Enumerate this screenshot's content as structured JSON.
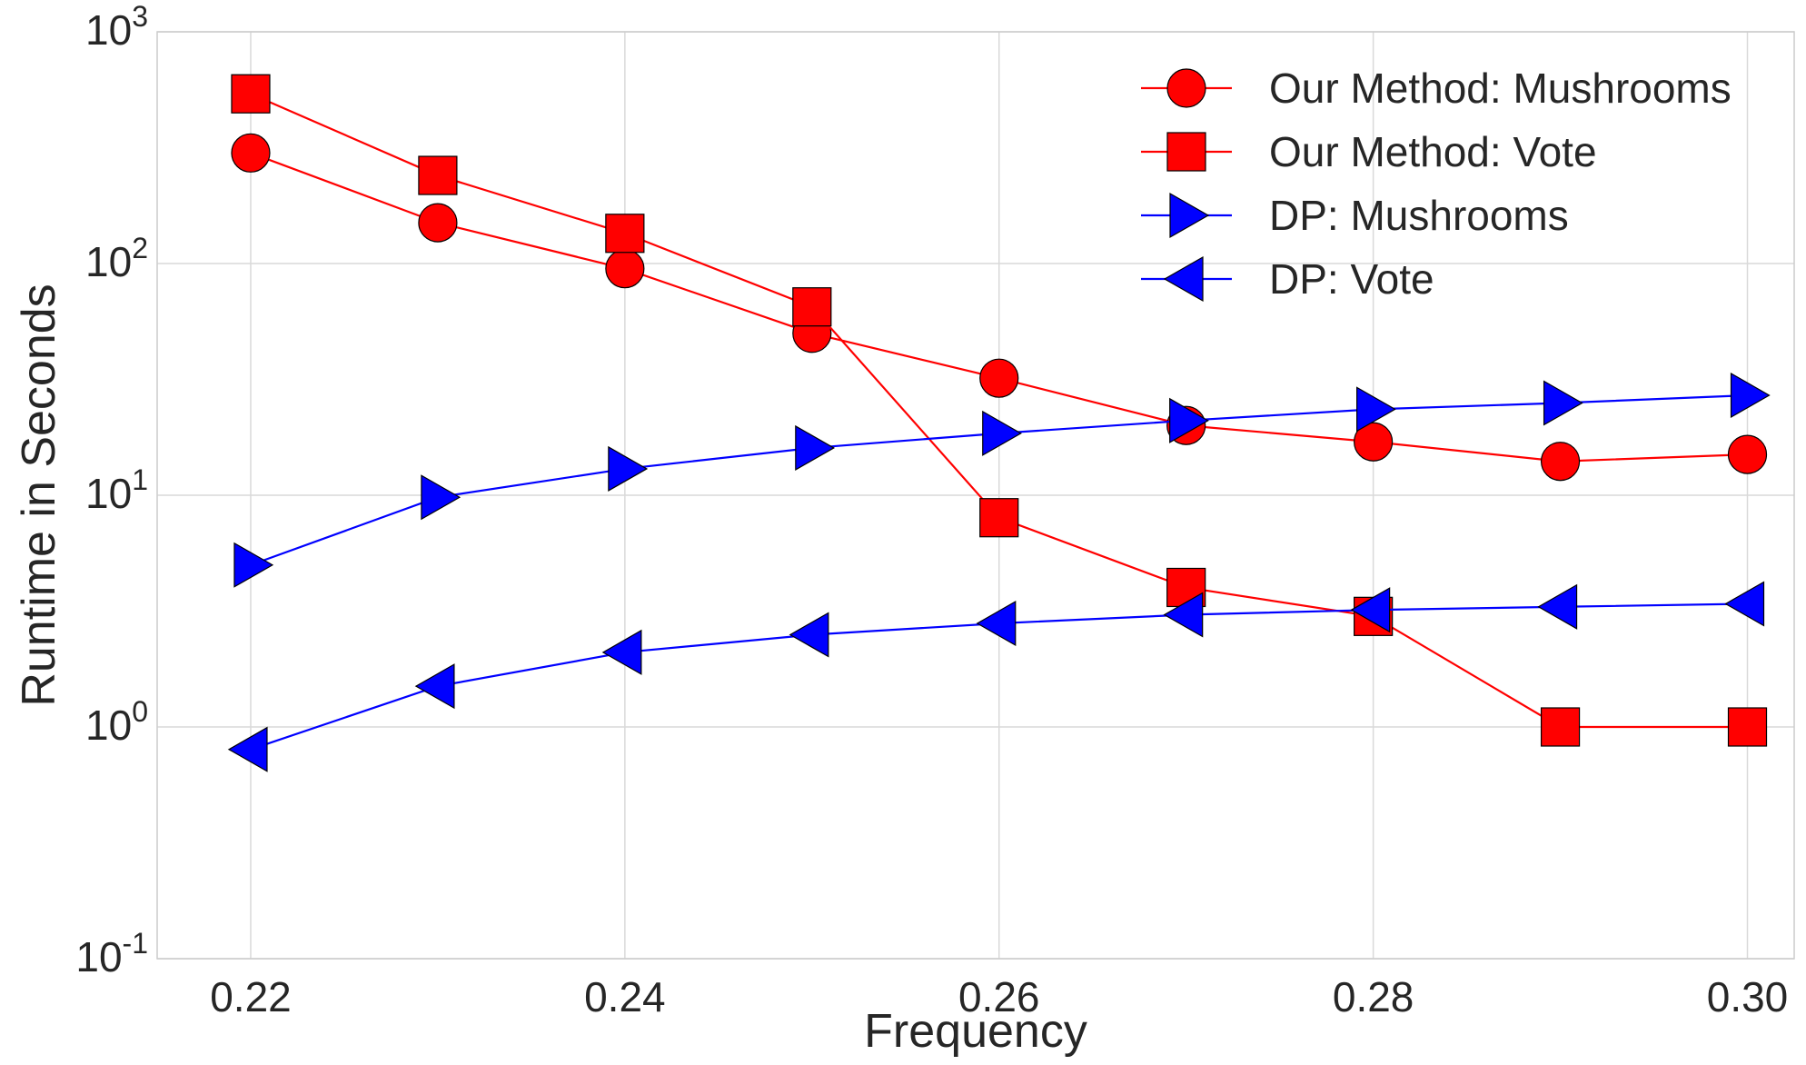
{
  "chart_data": {
    "type": "line",
    "title": "",
    "xlabel": "Frequency",
    "ylabel": "Runtime in Seconds",
    "y_scale": "log",
    "xlim": [
      0.215,
      0.3025
    ],
    "ylim": [
      0.1,
      1000
    ],
    "x_ticks": [
      0.22,
      0.24,
      0.26,
      0.28,
      0.3
    ],
    "x_tick_labels": [
      "0.22",
      "0.24",
      "0.26",
      "0.28",
      "0.30"
    ],
    "y_ticks": [
      {
        "value": 0.1,
        "base": "10",
        "exp": "-1"
      },
      {
        "value": 1,
        "base": "10",
        "exp": "0"
      },
      {
        "value": 10,
        "base": "10",
        "exp": "1"
      },
      {
        "value": 100,
        "base": "10",
        "exp": "2"
      },
      {
        "value": 1000,
        "base": "10",
        "exp": "3"
      }
    ],
    "grid": true,
    "legend_position": "top-right",
    "x": [
      0.22,
      0.23,
      0.24,
      0.25,
      0.26,
      0.27,
      0.28,
      0.29,
      0.3
    ],
    "series": [
      {
        "name": "Our Method: Mushrooms",
        "color": "#ff0000",
        "marker": "circle",
        "values": [
          300,
          150,
          95,
          50,
          32,
          20,
          17,
          14,
          15
        ]
      },
      {
        "name": "Our Method: Vote",
        "color": "#ff0000",
        "marker": "square",
        "values": [
          540,
          240,
          135,
          65,
          8,
          4,
          3,
          1,
          1
        ]
      },
      {
        "name": "DP: Mushrooms",
        "color": "#0000ff",
        "marker": "triangle-right",
        "values": [
          5,
          9.8,
          13,
          16,
          18.5,
          21,
          23.5,
          25,
          27
        ]
      },
      {
        "name": "DP: Vote",
        "color": "#0000ff",
        "marker": "triangle-left",
        "values": [
          0.8,
          1.5,
          2.1,
          2.5,
          2.8,
          3.05,
          3.2,
          3.3,
          3.4
        ]
      }
    ]
  }
}
